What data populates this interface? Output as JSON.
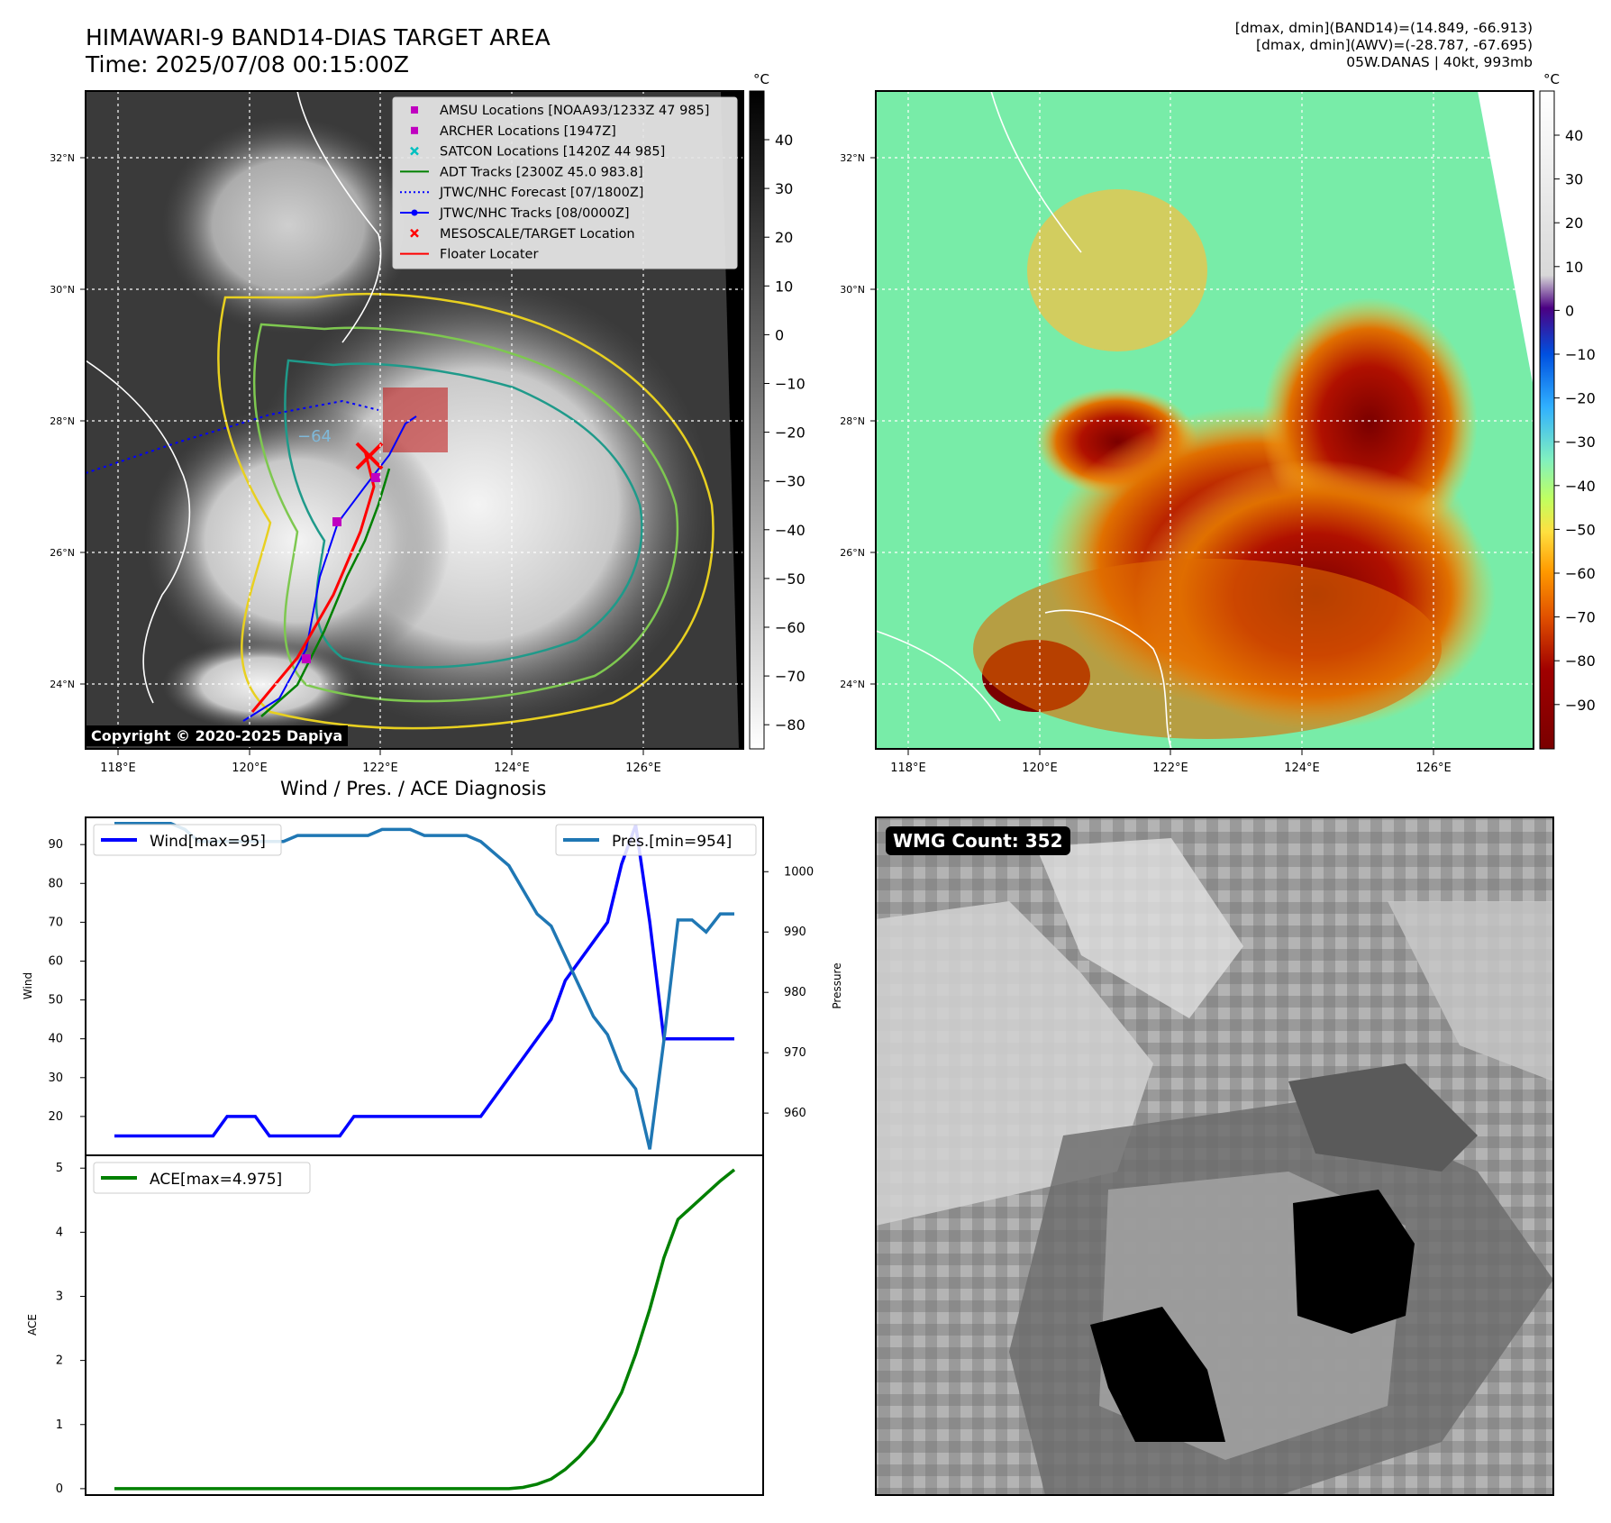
{
  "header": {
    "title": "HIMAWARI-9 BAND14-DIAS TARGET AREA",
    "time": "Time: 2025/07/08 00:15:00Z",
    "info_lines": [
      "[dmax, dmin](BAND14)=(14.849, -66.913)",
      "[dmax, dmin](AWV)=(-28.787, -67.695)",
      "05W.DANAS | 40kt, 993mb"
    ]
  },
  "copyright": "Copyright © 2020-2025 Dapiya",
  "section_title": "Wind / Pres. / ACE Diagnosis",
  "wmg_label": "WMG Count: 352",
  "map": {
    "lon_ticks": [
      "118°E",
      "120°E",
      "122°E",
      "124°E",
      "126°E"
    ],
    "lat_ticks": [
      "32°N",
      "30°N",
      "28°N",
      "26°N",
      "24°N"
    ],
    "contour_label": "−64"
  },
  "left_colorbar": {
    "unit": "°C",
    "ticks": [
      "40",
      "30",
      "20",
      "10",
      "0",
      "−10",
      "−20",
      "−30",
      "−40",
      "−50",
      "−60",
      "−70",
      "−80"
    ]
  },
  "right_colorbar": {
    "unit": "°C",
    "ticks": [
      "40",
      "30",
      "20",
      "10",
      "0",
      "−10",
      "−20",
      "−30",
      "−40",
      "−50",
      "−60",
      "−70",
      "−80",
      "−90"
    ]
  },
  "legend": [
    {
      "label": "AMSU Locations [NOAA93/1233Z 47 985]",
      "marker": "square",
      "color": "#c000c0"
    },
    {
      "label": "ARCHER Locations [1947Z]",
      "marker": "square",
      "color": "#c000c0"
    },
    {
      "label": "SATCON Locations [1420Z 44 985]",
      "marker": "x",
      "color": "#00c0c0"
    },
    {
      "label": "ADT Tracks [2300Z 45.0 983.8]",
      "marker": "line",
      "color": "#008000"
    },
    {
      "label": "JTWC/NHC Forecast [07/1800Z]",
      "marker": "dotted",
      "color": "#0000ff"
    },
    {
      "label": "JTWC/NHC Tracks [08/0000Z]",
      "marker": "line-dot",
      "color": "#0000ff"
    },
    {
      "label": "MESOSCALE/TARGET Location",
      "marker": "x",
      "color": "#ff0000"
    },
    {
      "label": "Floater Locater",
      "marker": "line",
      "color": "#ff0000"
    }
  ],
  "chart_data": [
    {
      "type": "line",
      "ylabel": "Wind",
      "series": [
        {
          "name": "Wind[max=95]",
          "color": "#0000ff",
          "axis": "left",
          "values": [
            15,
            15,
            15,
            15,
            15,
            15,
            15,
            15,
            20,
            20,
            20,
            15,
            15,
            15,
            15,
            15,
            15,
            20,
            20,
            20,
            20,
            20,
            20,
            20,
            20,
            20,
            20,
            25,
            30,
            35,
            40,
            45,
            55,
            60,
            65,
            70,
            85,
            95,
            70,
            40,
            40,
            40,
            40,
            40,
            40
          ]
        },
        {
          "name": "Pres.[min=954]",
          "color": "#1f77b4",
          "axis": "right",
          "values": [
            1008,
            1008,
            1008,
            1008,
            1008,
            1007,
            1005,
            1005,
            1005,
            1005,
            1005,
            1005,
            1005,
            1006,
            1006,
            1006,
            1006,
            1006,
            1006,
            1007,
            1007,
            1007,
            1006,
            1006,
            1006,
            1006,
            1005,
            1003,
            1001,
            997,
            993,
            991,
            986,
            981,
            976,
            973,
            967,
            964,
            954,
            972,
            992,
            992,
            990,
            993,
            993
          ]
        }
      ],
      "ylim_left": [
        10,
        97
      ],
      "ylim_right": [
        953,
        1009
      ],
      "yticks_left": [
        "20",
        "30",
        "40",
        "50",
        "60",
        "70",
        "80",
        "90"
      ],
      "yticks_right": [
        "960",
        "970",
        "980",
        "990",
        "1000"
      ],
      "y2label": "Pressure"
    },
    {
      "type": "line",
      "ylabel": "ACE",
      "series": [
        {
          "name": "ACE[max=4.975]",
          "color": "#008000",
          "values": [
            0,
            0,
            0,
            0,
            0,
            0,
            0,
            0,
            0,
            0,
            0,
            0,
            0,
            0,
            0,
            0,
            0,
            0,
            0,
            0,
            0,
            0,
            0,
            0,
            0,
            0,
            0,
            0,
            0,
            0.02,
            0.07,
            0.15,
            0.3,
            0.5,
            0.75,
            1.1,
            1.5,
            2.1,
            2.8,
            3.6,
            4.2,
            4.4,
            4.6,
            4.8,
            4.975
          ]
        }
      ],
      "ylim": [
        -0.1,
        5.2
      ],
      "yticks": [
        "0",
        "1",
        "2",
        "3",
        "4",
        "5"
      ]
    }
  ]
}
